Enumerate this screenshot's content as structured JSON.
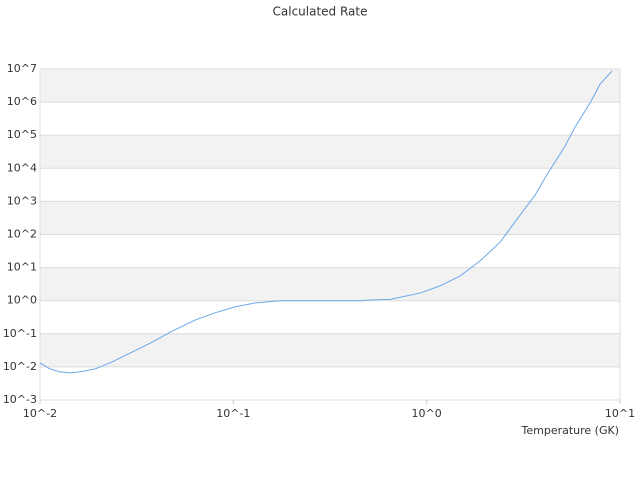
{
  "chart_data": {
    "type": "line",
    "title": "Calculated Rate",
    "x_label": "Temperature (GK)",
    "xscale": "log",
    "yscale": "log",
    "grid": "alternating-bands",
    "xlim": [
      0.01,
      10
    ],
    "ylim": [
      0.001,
      10000000
    ],
    "xticks": [
      {
        "value": 0.01,
        "label": "10^-2"
      },
      {
        "value": 0.1,
        "label": "10^-1"
      },
      {
        "value": 1,
        "label": "10^0"
      },
      {
        "value": 10,
        "label": "10^1"
      }
    ],
    "yticks": [
      {
        "value": 0.001,
        "label": "10^-3"
      },
      {
        "value": 0.01,
        "label": "10^-2"
      },
      {
        "value": 0.1,
        "label": "10^-1"
      },
      {
        "value": 1,
        "label": "10^0"
      },
      {
        "value": 10,
        "label": "10^1"
      },
      {
        "value": 100,
        "label": "10^2"
      },
      {
        "value": 1000,
        "label": "10^3"
      },
      {
        "value": 10000,
        "label": "10^4"
      },
      {
        "value": 100000,
        "label": "10^5"
      },
      {
        "value": 1000000,
        "label": "10^6"
      },
      {
        "value": 10000000,
        "label": "10^7"
      }
    ],
    "series": [
      {
        "color": "#6aa9e9",
        "x": [
          0.01,
          0.01127,
          0.01268,
          0.01429,
          0.0161,
          0.0193,
          0.023,
          0.0292,
          0.0371,
          0.0471,
          0.0634,
          0.0804,
          0.102,
          0.129,
          0.175,
          0.452,
          0.509,
          0.646,
          0.925,
          1.17,
          1.49,
          1.89,
          2.4,
          2.86,
          3.64,
          4.09,
          5.2,
          5.86,
          7.0,
          7.89,
          9.1
        ],
        "values": [
          0.0132,
          0.0087,
          0.0071,
          0.0066,
          0.0071,
          0.0087,
          0.0132,
          0.026,
          0.052,
          0.112,
          0.26,
          0.43,
          0.65,
          0.85,
          1.0,
          1.0,
          1.05,
          1.1,
          1.7,
          2.8,
          5.6,
          16,
          59,
          240,
          1550,
          5100,
          47000,
          178000,
          940000,
          3500000,
          8700000
        ]
      }
    ]
  }
}
